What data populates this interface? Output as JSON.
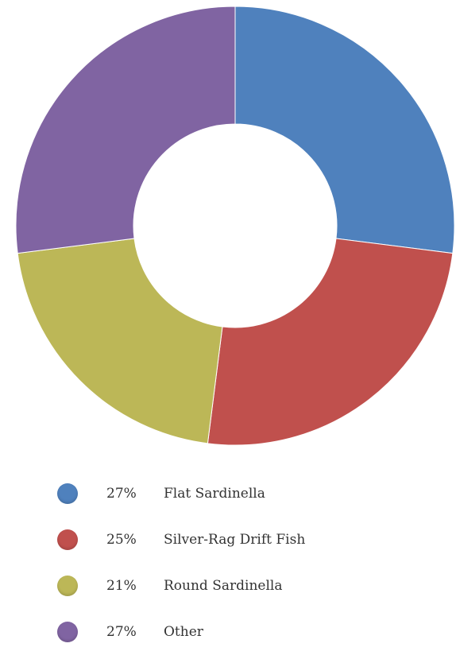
{
  "chart_data": {
    "type": "pie",
    "variant": "donut",
    "title": "",
    "series": [
      {
        "name": "Flat Sardinella",
        "value": 27,
        "value_label": "27%",
        "color": "#4f81bd"
      },
      {
        "name": "Silver-Rag Drift Fish",
        "value": 25,
        "value_label": "25%",
        "color": "#c0504d"
      },
      {
        "name": "Round Sardinella",
        "value": 21,
        "value_label": "21%",
        "color": "#bcb757"
      },
      {
        "name": "Other",
        "value": 27,
        "value_label": "27%",
        "color": "#8064a2"
      }
    ],
    "legend_position": "bottom"
  }
}
